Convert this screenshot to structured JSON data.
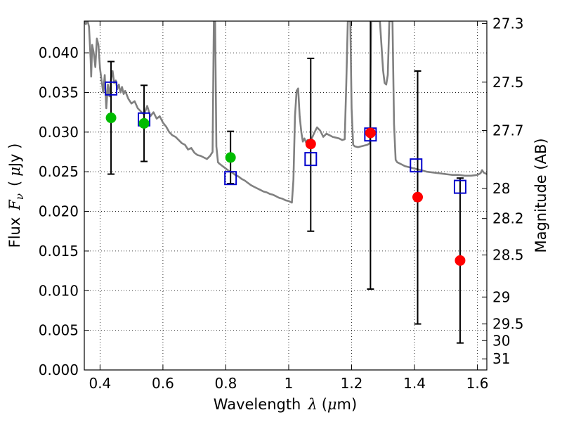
{
  "chart_data": {
    "type": "scatter",
    "title": "",
    "xlabel": "Wavelength",
    "xlabel_symbol": "λ",
    "xlabel_unit_open": "(",
    "xlabel_unit_mu": "μ",
    "xlabel_unit_rest": "m)",
    "ylabel": "Flux",
    "ylabel_symbol": "F",
    "ylabel_subscript": "ν",
    "ylabel_unit_open": "(",
    "ylabel_unit_mu": "μ",
    "ylabel_unit_rest": "Jy )",
    "y2label": "Magnitude (AB)",
    "xlim": [
      0.35,
      1.63
    ],
    "ylim": [
      0.0,
      0.044
    ],
    "x_ticks": [
      0.4,
      0.6,
      0.8,
      1.0,
      1.2,
      1.4,
      1.6
    ],
    "x_tick_labels": [
      "0.4",
      "0.6",
      "0.8",
      "1",
      "1.2",
      "1.4",
      "1.6"
    ],
    "y_ticks": [
      0.0,
      0.005,
      0.01,
      0.015,
      0.02,
      0.025,
      0.03,
      0.035,
      0.04
    ],
    "y_tick_labels": [
      "0.000",
      "0.005",
      "0.010",
      "0.015",
      "0.020",
      "0.025",
      "0.030",
      "0.035",
      "0.040"
    ],
    "y2_ticks": [
      {
        "label": "27.3",
        "flux": 0.0437
      },
      {
        "label": "27.5",
        "flux": 0.0363
      },
      {
        "label": "27.7",
        "flux": 0.0302
      },
      {
        "label": "28",
        "flux": 0.0229
      },
      {
        "label": "28.2",
        "flux": 0.0191
      },
      {
        "label": "28.5",
        "flux": 0.0145
      },
      {
        "label": "29",
        "flux": 0.0092
      },
      {
        "label": "29.5",
        "flux": 0.0058
      },
      {
        "label": "30",
        "flux": 0.0037
      },
      {
        "label": "31",
        "flux": 0.0014
      }
    ],
    "grid": true,
    "colors": {
      "spectrum": "#808080",
      "model_box": "#0000cc",
      "optical_points": "#00bb00",
      "nir_points": "#ff0000",
      "errorbar": "#000000"
    },
    "spectrum": [
      [
        0.35,
        0.0441
      ],
      [
        0.355,
        0.0436
      ],
      [
        0.36,
        0.0441
      ],
      [
        0.365,
        0.0433
      ],
      [
        0.37,
        0.0392
      ],
      [
        0.372,
        0.037
      ],
      [
        0.375,
        0.041
      ],
      [
        0.38,
        0.04
      ],
      [
        0.385,
        0.0382
      ],
      [
        0.39,
        0.0418
      ],
      [
        0.395,
        0.041
      ],
      [
        0.4,
        0.038
      ],
      [
        0.405,
        0.0365
      ],
      [
        0.41,
        0.035
      ],
      [
        0.415,
        0.0372
      ],
      [
        0.42,
        0.033
      ],
      [
        0.425,
        0.036
      ],
      [
        0.43,
        0.0345
      ],
      [
        0.435,
        0.0368
      ],
      [
        0.44,
        0.0377
      ],
      [
        0.445,
        0.0362
      ],
      [
        0.45,
        0.0365
      ],
      [
        0.455,
        0.0354
      ],
      [
        0.46,
        0.036
      ],
      [
        0.465,
        0.035
      ],
      [
        0.47,
        0.0357
      ],
      [
        0.475,
        0.0348
      ],
      [
        0.48,
        0.0352
      ],
      [
        0.49,
        0.0342
      ],
      [
        0.5,
        0.0336
      ],
      [
        0.51,
        0.0339
      ],
      [
        0.52,
        0.033
      ],
      [
        0.53,
        0.0326
      ],
      [
        0.54,
        0.0322
      ],
      [
        0.55,
        0.0333
      ],
      [
        0.56,
        0.032
      ],
      [
        0.57,
        0.0325
      ],
      [
        0.58,
        0.0317
      ],
      [
        0.59,
        0.032
      ],
      [
        0.6,
        0.0312
      ],
      [
        0.61,
        0.0307
      ],
      [
        0.62,
        0.03
      ],
      [
        0.63,
        0.0296
      ],
      [
        0.64,
        0.0294
      ],
      [
        0.65,
        0.029
      ],
      [
        0.66,
        0.0286
      ],
      [
        0.67,
        0.0284
      ],
      [
        0.68,
        0.0278
      ],
      [
        0.69,
        0.028
      ],
      [
        0.7,
        0.0274
      ],
      [
        0.71,
        0.0271
      ],
      [
        0.72,
        0.027
      ],
      [
        0.73,
        0.0268
      ],
      [
        0.74,
        0.0266
      ],
      [
        0.75,
        0.027
      ],
      [
        0.758,
        0.0275
      ],
      [
        0.762,
        0.044
      ],
      [
        0.766,
        0.044
      ],
      [
        0.77,
        0.0282
      ],
      [
        0.775,
        0.0262
      ],
      [
        0.78,
        0.026
      ],
      [
        0.79,
        0.0257
      ],
      [
        0.8,
        0.0254
      ],
      [
        0.81,
        0.0251
      ],
      [
        0.82,
        0.0249
      ],
      [
        0.83,
        0.0246
      ],
      [
        0.84,
        0.0244
      ],
      [
        0.85,
        0.0241
      ],
      [
        0.86,
        0.0239
      ],
      [
        0.87,
        0.0236
      ],
      [
        0.88,
        0.0233
      ],
      [
        0.89,
        0.0231
      ],
      [
        0.9,
        0.0229
      ],
      [
        0.91,
        0.0227
      ],
      [
        0.92,
        0.0225
      ],
      [
        0.93,
        0.0224
      ],
      [
        0.94,
        0.0222
      ],
      [
        0.95,
        0.0221
      ],
      [
        0.96,
        0.0219
      ],
      [
        0.97,
        0.0217
      ],
      [
        0.98,
        0.0216
      ],
      [
        0.99,
        0.0214
      ],
      [
        1.0,
        0.0213
      ],
      [
        1.01,
        0.0211
      ],
      [
        1.015,
        0.024
      ],
      [
        1.02,
        0.032
      ],
      [
        1.025,
        0.0352
      ],
      [
        1.03,
        0.0355
      ],
      [
        1.035,
        0.032
      ],
      [
        1.04,
        0.03
      ],
      [
        1.045,
        0.0288
      ],
      [
        1.05,
        0.0292
      ],
      [
        1.055,
        0.0287
      ],
      [
        1.06,
        0.029
      ],
      [
        1.065,
        0.0285
      ],
      [
        1.07,
        0.0289
      ],
      [
        1.08,
        0.0298
      ],
      [
        1.09,
        0.0306
      ],
      [
        1.1,
        0.0302
      ],
      [
        1.11,
        0.0294
      ],
      [
        1.12,
        0.0298
      ],
      [
        1.13,
        0.0296
      ],
      [
        1.14,
        0.0294
      ],
      [
        1.15,
        0.0293
      ],
      [
        1.16,
        0.0292
      ],
      [
        1.17,
        0.029
      ],
      [
        1.178,
        0.0291
      ],
      [
        1.183,
        0.036
      ],
      [
        1.188,
        0.044
      ],
      [
        1.196,
        0.044
      ],
      [
        1.2,
        0.033
      ],
      [
        1.205,
        0.0284
      ],
      [
        1.21,
        0.0282
      ],
      [
        1.22,
        0.0281
      ],
      [
        1.23,
        0.0282
      ],
      [
        1.24,
        0.0283
      ],
      [
        1.25,
        0.0284
      ],
      [
        1.258,
        0.0286
      ],
      [
        1.262,
        0.044
      ],
      [
        1.285,
        0.044
      ],
      [
        1.29,
        0.044
      ],
      [
        1.3,
        0.0378
      ],
      [
        1.305,
        0.0362
      ],
      [
        1.31,
        0.036
      ],
      [
        1.315,
        0.0372
      ],
      [
        1.32,
        0.044
      ],
      [
        1.33,
        0.044
      ],
      [
        1.335,
        0.031
      ],
      [
        1.34,
        0.0265
      ],
      [
        1.345,
        0.0262
      ],
      [
        1.35,
        0.0261
      ],
      [
        1.36,
        0.0259
      ],
      [
        1.37,
        0.0257
      ],
      [
        1.38,
        0.0256
      ],
      [
        1.39,
        0.0255
      ],
      [
        1.4,
        0.0254
      ],
      [
        1.42,
        0.0252
      ],
      [
        1.44,
        0.025
      ],
      [
        1.46,
        0.0249
      ],
      [
        1.48,
        0.0248
      ],
      [
        1.5,
        0.0247
      ],
      [
        1.52,
        0.0246
      ],
      [
        1.54,
        0.0246
      ],
      [
        1.56,
        0.0245
      ],
      [
        1.58,
        0.0245
      ],
      [
        1.6,
        0.0246
      ],
      [
        1.61,
        0.0248
      ],
      [
        1.615,
        0.0252
      ],
      [
        1.62,
        0.0249
      ],
      [
        1.63,
        0.0247
      ]
    ],
    "model_boxes": [
      {
        "x": 0.435,
        "y": 0.0355
      },
      {
        "x": 0.54,
        "y": 0.0316
      },
      {
        "x": 0.815,
        "y": 0.0242
      },
      {
        "x": 1.07,
        "y": 0.0266
      },
      {
        "x": 1.26,
        "y": 0.0297
      },
      {
        "x": 1.405,
        "y": 0.0258
      },
      {
        "x": 1.545,
        "y": 0.0231
      }
    ],
    "series": [
      {
        "points": [
          {
            "x": 0.435,
            "y": 0.0318,
            "yerr_low": 0.0247,
            "yerr_high": 0.0389
          },
          {
            "x": 0.54,
            "y": 0.0311,
            "yerr_low": 0.0263,
            "yerr_high": 0.0359
          },
          {
            "x": 0.815,
            "y": 0.0268,
            "yerr_low": 0.0235,
            "yerr_high": 0.0301
          }
        ]
      },
      {
        "points": [
          {
            "x": 1.07,
            "y": 0.0285,
            "yerr_low": 0.0175,
            "yerr_high": 0.0393
          },
          {
            "x": 1.26,
            "y": 0.0299,
            "yerr_low": 0.0102,
            "yerr_high": 0.0441
          },
          {
            "x": 1.41,
            "y": 0.0218,
            "yerr_low": 0.0058,
            "yerr_high": 0.0377
          },
          {
            "x": 1.545,
            "y": 0.0138,
            "yerr_low": 0.0034,
            "yerr_high": 0.0242
          }
        ]
      }
    ]
  }
}
